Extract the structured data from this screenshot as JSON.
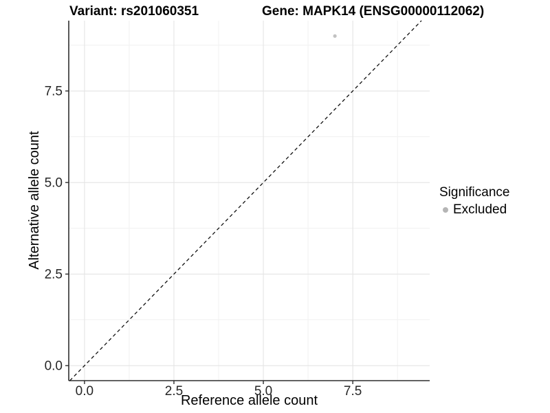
{
  "title": {
    "variant": "Variant: rs201060351",
    "gene": "Gene: MAPK14 (ENSG00000112062)"
  },
  "chart_data": {
    "type": "scatter",
    "title": "Variant: rs201060351    Gene: MAPK14 (ENSG00000112062)",
    "xlabel": "Reference allele count",
    "ylabel": "Alternative allele count",
    "xlim": [
      -0.44,
      9.65
    ],
    "ylim": [
      -0.41,
      9.42
    ],
    "x_ticks": [
      0.0,
      2.5,
      5.0,
      7.5
    ],
    "x_tick_labels": [
      "0.0",
      "2.5",
      "5.0",
      "7.5"
    ],
    "y_ticks": [
      0.0,
      2.5,
      5.0,
      7.5
    ],
    "y_tick_labels": [
      "0.0",
      "2.5",
      "5.0",
      "7.5"
    ],
    "x_minor_ticks": [
      1.25,
      3.75,
      6.25,
      8.75
    ],
    "y_minor_ticks": [
      1.25,
      3.75,
      6.25,
      8.75
    ],
    "grid": true,
    "series": [
      {
        "name": "Excluded",
        "color": "#c2c2c2",
        "points": [
          {
            "x": 7,
            "y": 9
          }
        ]
      }
    ],
    "reference_line": {
      "type": "identity",
      "slope": 1,
      "intercept": 0,
      "style": "dashed",
      "color": "#111111"
    },
    "legend": {
      "title": "Significance",
      "position": "right",
      "entries": [
        {
          "label": "Excluded",
          "color": "#b5b5b5"
        }
      ]
    }
  },
  "colors": {
    "background": "#ffffff",
    "grid_major": "#e4e4e4",
    "grid_minor": "#f1f1f1",
    "axis_line": "#2d2d2d",
    "tick_mark": "#2d2d2d",
    "tick_label": "#262626",
    "point": "#c2c2c2",
    "legend_key": "#b5b5b5"
  }
}
